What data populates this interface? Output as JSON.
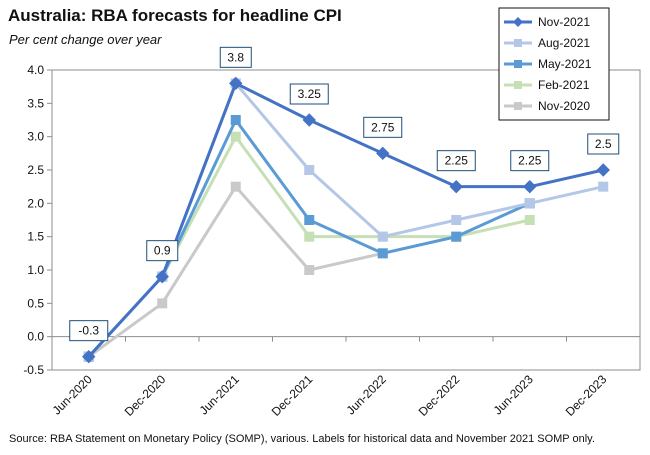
{
  "chart_data": {
    "type": "line",
    "title": "Australia: RBA forecasts for headline CPI",
    "subtitle": "Per cent change over year",
    "source": "Source: RBA Statement on Monetary Policy (SOMP), various. Labels for historical data and November 2021 SOMP only.",
    "xlabel": "",
    "ylabel": "",
    "categories": [
      "Jun-2020",
      "Dec-2020",
      "Jun-2021",
      "Dec-2021",
      "Jun-2022",
      "Dec-2022",
      "Jun-2023",
      "Dec-2023"
    ],
    "ylim": [
      -0.5,
      4.0
    ],
    "yticks": [
      -0.5,
      0.0,
      0.5,
      1.0,
      1.5,
      2.0,
      2.5,
      3.0,
      3.5,
      4.0
    ],
    "ytick_labels": [
      "-0.5",
      "0.0",
      "0.5",
      "1.0",
      "1.5",
      "2.0",
      "2.5",
      "3.0",
      "3.5",
      "4.0"
    ],
    "legend_position": "top-right",
    "series": [
      {
        "name": "Nov-2021",
        "color": "#4472c4",
        "marker": "diamond",
        "values": [
          -0.3,
          0.9,
          3.8,
          3.25,
          2.75,
          2.25,
          2.25,
          2.5
        ]
      },
      {
        "name": "Aug-2021",
        "color": "#b4c7e7",
        "marker": "square",
        "values": [
          -0.3,
          0.9,
          3.8,
          2.5,
          1.5,
          1.75,
          2.0,
          2.25
        ]
      },
      {
        "name": "May-2021",
        "color": "#5b9bd5",
        "marker": "square",
        "values": [
          -0.3,
          0.9,
          3.25,
          1.75,
          1.25,
          1.5,
          2.0,
          null
        ]
      },
      {
        "name": "Feb-2021",
        "color": "#c5e0b4",
        "marker": "square",
        "values": [
          -0.3,
          0.9,
          3.0,
          1.5,
          1.5,
          1.5,
          1.75,
          null
        ]
      },
      {
        "name": "Nov-2020",
        "color": "#c9c9c9",
        "marker": "square",
        "values": [
          -0.3,
          0.5,
          2.25,
          1.0,
          1.25,
          1.5,
          null,
          null
        ]
      }
    ],
    "data_labels": [
      {
        "series": "Nov-2021",
        "category": "Jun-2020",
        "text": "-0.3"
      },
      {
        "series": "Nov-2021",
        "category": "Dec-2020",
        "text": "0.9"
      },
      {
        "series": "Nov-2021",
        "category": "Jun-2021",
        "text": "3.8"
      },
      {
        "series": "Nov-2021",
        "category": "Dec-2021",
        "text": "3.25"
      },
      {
        "series": "Nov-2021",
        "category": "Jun-2022",
        "text": "2.75"
      },
      {
        "series": "Nov-2021",
        "category": "Dec-2022",
        "text": "2.25"
      },
      {
        "series": "Nov-2021",
        "category": "Jun-2023",
        "text": "2.25"
      },
      {
        "series": "Nov-2021",
        "category": "Dec-2023",
        "text": "2.5"
      }
    ]
  }
}
